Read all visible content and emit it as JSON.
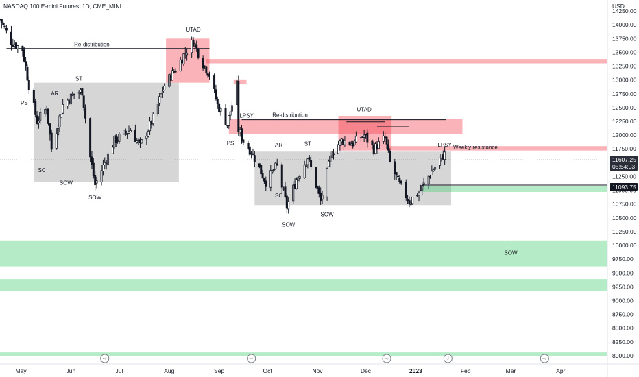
{
  "header": {
    "symbol_title": "NASDAQ 100 E-mini Futures, 1D, CME_MINI",
    "currency": "USD"
  },
  "price_badges": {
    "last_price": "11607.25",
    "countdown": "05:54:03",
    "level_price": "11093.75"
  },
  "colors": {
    "candle": "#131722",
    "zone_gray": "#9e9e9e",
    "zone_red": "#f23645",
    "zone_green": "#4fd27a",
    "last_price_badge": "#2a2e39"
  },
  "event_icons": [
    "arrow-right-circle-icon",
    "arrow-right-circle-icon",
    "arrow-right-circle-icon",
    "lightning-circle-icon",
    "arrow-right-circle-icon"
  ],
  "chart_data": {
    "type": "candlestick",
    "title": "NASDAQ 100 E-mini Futures, 1D, CME_MINI",
    "y_axis": {
      "label": "USD",
      "range": [
        7850,
        14450
      ],
      "ticks": [
        14250,
        14000,
        13750,
        13500,
        13250,
        13000,
        12750,
        12500,
        12250,
        12000,
        11750,
        11500,
        11250,
        11000,
        10750,
        10500,
        10250,
        10000,
        9750,
        9500,
        9250,
        9000,
        8750,
        8500,
        8250,
        8000
      ],
      "tick_labels": [
        "14250.00",
        "14000.00",
        "13750.00",
        "13500.00",
        "13250.00",
        "13000.00",
        "12750.00",
        "12500.00",
        "12250.00",
        "12000.00",
        "11750.00",
        "11500.00",
        "11250.00",
        "11000.00",
        "10750.00",
        "10500.00",
        "10250.00",
        "10000.00",
        "9750.00",
        "9500.00",
        "9250.00",
        "9000.00",
        "8750.00",
        "8500.00",
        "8250.00",
        "8000.00"
      ]
    },
    "x_axis": {
      "range": [
        "2022-04-18",
        "2023-04-30"
      ],
      "ticks": [
        {
          "date": "2022-05-01",
          "label": "May"
        },
        {
          "date": "2022-06-01",
          "label": "Jun"
        },
        {
          "date": "2022-07-01",
          "label": "Jul"
        },
        {
          "date": "2022-08-01",
          "label": "Aug"
        },
        {
          "date": "2022-09-01",
          "label": "Sep"
        },
        {
          "date": "2022-10-01",
          "label": "Oct"
        },
        {
          "date": "2022-11-01",
          "label": "Nov"
        },
        {
          "date": "2022-12-01",
          "label": "Dec"
        },
        {
          "date": "2023-01-01",
          "label": "2023"
        },
        {
          "date": "2023-02-01",
          "label": "Feb"
        },
        {
          "date": "2023-03-01",
          "label": "Mar"
        },
        {
          "date": "2023-04-01",
          "label": "Apr"
        }
      ]
    },
    "price_path": [
      [
        "2022-04-18",
        14100
      ],
      [
        "2022-04-25",
        13700
      ],
      [
        "2022-05-02",
        13550
      ],
      [
        "2022-05-06",
        12900
      ],
      [
        "2022-05-11",
        12250
      ],
      [
        "2022-05-17",
        12500
      ],
      [
        "2022-05-20",
        11750
      ],
      [
        "2022-05-27",
        12550
      ],
      [
        "2022-06-03",
        12750
      ],
      [
        "2022-06-08",
        12800
      ],
      [
        "2022-06-13",
        11600
      ],
      [
        "2022-06-16",
        11100
      ],
      [
        "2022-06-22",
        11500
      ],
      [
        "2022-06-28",
        11900
      ],
      [
        "2022-07-08",
        12100
      ],
      [
        "2022-07-14",
        11800
      ],
      [
        "2022-07-22",
        12300
      ],
      [
        "2022-07-29",
        12900
      ],
      [
        "2022-08-05",
        13200
      ],
      [
        "2022-08-11",
        13500
      ],
      [
        "2022-08-16",
        13700
      ],
      [
        "2022-08-22",
        13300
      ],
      [
        "2022-08-26",
        13100
      ],
      [
        "2022-08-31",
        12550
      ],
      [
        "2022-09-06",
        12200
      ],
      [
        "2022-09-12",
        12900
      ],
      [
        "2022-09-13",
        12100
      ],
      [
        "2022-09-16",
        11900
      ],
      [
        "2022-09-21",
        11700
      ],
      [
        "2022-09-30",
        11150
      ],
      [
        "2022-10-07",
        11450
      ],
      [
        "2022-10-13",
        10700
      ],
      [
        "2022-10-19",
        11200
      ],
      [
        "2022-10-26",
        11600
      ],
      [
        "2022-11-03",
        10800
      ],
      [
        "2022-11-10",
        11700
      ],
      [
        "2022-11-16",
        11900
      ],
      [
        "2022-11-23",
        11850
      ],
      [
        "2022-11-30",
        12000
      ],
      [
        "2022-12-06",
        11750
      ],
      [
        "2022-12-13",
        11950
      ],
      [
        "2022-12-16",
        11500
      ],
      [
        "2022-12-22",
        11100
      ],
      [
        "2022-12-28",
        10800
      ],
      [
        "2023-01-04",
        11000
      ],
      [
        "2023-01-10",
        11300
      ],
      [
        "2023-01-17",
        11600
      ],
      [
        "2023-01-19",
        11650
      ]
    ],
    "zones": [
      {
        "kind": "gray",
        "from": "2022-05-09",
        "to": "2022-08-07",
        "low": 11150,
        "high": 12950
      },
      {
        "kind": "red",
        "from": "2022-07-30",
        "to": "2022-08-26",
        "low": 12950,
        "high": 13750
      },
      {
        "kind": "red",
        "from": "2022-08-24",
        "to": "2023-04-30",
        "low": 13300,
        "high": 13380
      },
      {
        "kind": "red",
        "from": "2022-09-10",
        "to": "2022-09-18",
        "low": 12920,
        "high": 13010
      },
      {
        "kind": "red",
        "from": "2022-09-07",
        "to": "2023-01-30",
        "low": 12025,
        "high": 12290
      },
      {
        "kind": "gray",
        "from": "2022-09-23",
        "to": "2023-01-23",
        "low": 10730,
        "high": 11700
      },
      {
        "kind": "red",
        "from": "2022-11-14",
        "to": "2022-12-17",
        "low": 11720,
        "high": 12350
      },
      {
        "kind": "red",
        "from": "2022-12-15",
        "to": "2023-04-30",
        "low": 11720,
        "high": 11800
      },
      {
        "kind": "green",
        "from": "2023-01-05",
        "to": "2023-04-30",
        "low": 10970,
        "high": 11080
      },
      {
        "kind": "green",
        "from": "2022-04-18",
        "to": "2023-04-30",
        "low": 9620,
        "high": 10090
      },
      {
        "kind": "green",
        "from": "2022-04-18",
        "to": "2023-04-30",
        "low": 9180,
        "high": 9390
      },
      {
        "kind": "green",
        "from": "2022-04-18",
        "to": "2023-04-30",
        "low": 7990,
        "high": 8060
      }
    ],
    "level_lines": [
      {
        "from": "2022-04-22",
        "to": "2022-08-26",
        "price": 13570
      },
      {
        "from": "2022-09-15",
        "to": "2023-01-20",
        "price": 12280
      },
      {
        "from": "2022-11-19",
        "to": "2022-12-13",
        "price": 12240
      },
      {
        "from": "2022-12-08",
        "to": "2022-12-28",
        "price": 12150
      },
      {
        "from": "2023-01-05",
        "to": "2023-04-30",
        "price": 11093.75
      }
    ],
    "annotations": [
      {
        "text": "PS",
        "date": "2022-05-03",
        "price": 12550
      },
      {
        "text": "AR",
        "date": "2022-05-22",
        "price": 12720
      },
      {
        "text": "ST",
        "date": "2022-06-06",
        "price": 12990
      },
      {
        "text": "SC",
        "date": "2022-05-14",
        "price": 11330
      },
      {
        "text": "SOW",
        "date": "2022-05-29",
        "price": 11100
      },
      {
        "text": "SOW",
        "date": "2022-06-16",
        "price": 10830
      },
      {
        "text": "Re-distribution",
        "date": "2022-06-14",
        "price": 13610
      },
      {
        "text": "UTAD",
        "date": "2022-08-16",
        "price": 13880
      },
      {
        "text": "LPSY",
        "date": "2022-09-18",
        "price": 12320
      },
      {
        "text": "PS",
        "date": "2022-09-08",
        "price": 11820
      },
      {
        "text": "AR",
        "date": "2022-10-08",
        "price": 11790
      },
      {
        "text": "ST",
        "date": "2022-10-26",
        "price": 11810
      },
      {
        "text": "Re-distribution",
        "date": "2022-10-15",
        "price": 12330
      },
      {
        "text": "UTAD",
        "date": "2022-11-30",
        "price": 12430
      },
      {
        "text": "SC",
        "date": "2022-10-08",
        "price": 10870
      },
      {
        "text": "SOW",
        "date": "2022-10-14",
        "price": 10340
      },
      {
        "text": "SOW",
        "date": "2022-11-07",
        "price": 10530
      },
      {
        "text": "LPSY",
        "date": "2023-01-19",
        "price": 11790
      },
      {
        "text": "Weekly resistance",
        "date": "2023-02-10",
        "price": 11745
      },
      {
        "text": "SOW",
        "date": "2023-03-01",
        "price": 9830
      }
    ]
  }
}
